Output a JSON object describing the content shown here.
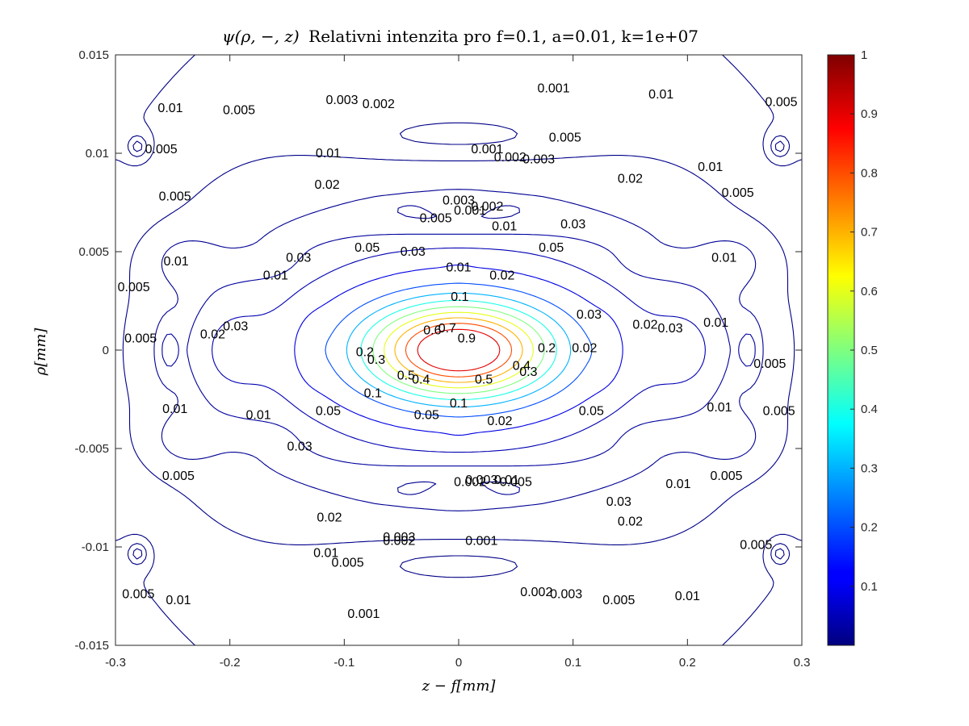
{
  "chart_data": {
    "type": "contour",
    "title": "ψ(ρ, −, z) Relativni intenzita pro f=0.1, a=0.01, k=1e+07",
    "title_parts": {
      "math": "ψ(ρ, −, z)",
      "text": "Relativni intenzita pro f=0.1, a=0.01, k=1e+07"
    },
    "xlabel": "z − f[mm]",
    "ylabel": "ρ[mm]",
    "xlim": [
      -0.3,
      0.3
    ],
    "ylim": [
      -0.015,
      0.015
    ],
    "x_ticks": [
      "-0.3",
      "-0.2",
      "-0.1",
      "0",
      "0.1",
      "0.2",
      "0.3"
    ],
    "y_ticks": [
      "0.015",
      "0.01",
      "0.005",
      "0",
      "-0.005",
      "-0.01",
      "-0.015"
    ],
    "colorbar": {
      "min": 0,
      "max": 1,
      "ticks": [
        "1",
        "0.9",
        "0.8",
        "0.7",
        "0.6",
        "0.5",
        "0.4",
        "0.3",
        "0.2",
        "0.1"
      ],
      "colormap": "jet"
    },
    "contour_levels": [
      0.001,
      0.002,
      0.003,
      0.005,
      0.01,
      0.02,
      0.03,
      0.05,
      0.1,
      0.2,
      0.3,
      0.4,
      0.5,
      0.6,
      0.7,
      0.8,
      0.9
    ],
    "central_peak": {
      "z": 0,
      "rho": 0,
      "value": 1
    },
    "contour_labels": [
      {
        "text": "0.9",
        "z": 0.007,
        "rho": 0.0006
      },
      {
        "text": "0.7",
        "z": -0.01,
        "rho": 0.0011
      },
      {
        "text": "0.6",
        "z": -0.023,
        "rho": 0.001
      },
      {
        "text": "0.5",
        "z": 0.022,
        "rho": -0.0015
      },
      {
        "text": "0.5",
        "z": -0.046,
        "rho": -0.0013
      },
      {
        "text": "0.4",
        "z": 0.055,
        "rho": -0.0008
      },
      {
        "text": "0.4",
        "z": -0.033,
        "rho": -0.0015
      },
      {
        "text": "0.3",
        "z": 0.061,
        "rho": -0.0011
      },
      {
        "text": "0.3",
        "z": -0.072,
        "rho": -0.0005
      },
      {
        "text": "0.2",
        "z": 0.077,
        "rho": 0.0001
      },
      {
        "text": "0.2",
        "z": -0.082,
        "rho": -0.0001
      },
      {
        "text": "0.1",
        "z": 0.001,
        "rho": 0.0027
      },
      {
        "text": "0.1",
        "z": -0.075,
        "rho": -0.0022
      },
      {
        "text": "0.1",
        "z": 0.0,
        "rho": -0.0027
      },
      {
        "text": "0.05",
        "z": -0.08,
        "rho": 0.0052
      },
      {
        "text": "0.05",
        "z": 0.081,
        "rho": 0.0052
      },
      {
        "text": "0.05",
        "z": -0.114,
        "rho": -0.0031
      },
      {
        "text": "0.05",
        "z": 0.116,
        "rho": -0.0031
      },
      {
        "text": "0.05",
        "z": -0.028,
        "rho": -0.0033
      },
      {
        "text": "0.03",
        "z": -0.14,
        "rho": 0.0047
      },
      {
        "text": "0.03",
        "z": 0.1,
        "rho": 0.0064
      },
      {
        "text": "0.03",
        "z": -0.04,
        "rho": 0.005
      },
      {
        "text": "0.03",
        "z": -0.139,
        "rho": -0.0049
      },
      {
        "text": "0.03",
        "z": 0.14,
        "rho": -0.0077
      },
      {
        "text": "0.02",
        "z": -0.115,
        "rho": 0.0084
      },
      {
        "text": "0.02",
        "z": 0.15,
        "rho": 0.0087
      },
      {
        "text": "0.02",
        "z": -0.113,
        "rho": -0.0085
      },
      {
        "text": "0.02",
        "z": 0.15,
        "rho": -0.0087
      },
      {
        "text": "0.02",
        "z": 0.038,
        "rho": 0.0038
      },
      {
        "text": "0.02",
        "z": 0.036,
        "rho": -0.0036
      },
      {
        "text": "0.02",
        "z": -0.215,
        "rho": 0.0008
      },
      {
        "text": "0.02",
        "z": 0.163,
        "rho": 0.0013
      },
      {
        "text": "0.02",
        "z": 0.11,
        "rho": 0.0001
      },
      {
        "text": "0.03",
        "z": -0.195,
        "rho": 0.0012
      },
      {
        "text": "0.03",
        "z": 0.185,
        "rho": 0.0011
      },
      {
        "text": "0.03",
        "z": 0.114,
        "rho": 0.0018
      },
      {
        "text": "0.01",
        "z": -0.247,
        "rho": 0.0045
      },
      {
        "text": "0.01",
        "z": 0.232,
        "rho": 0.0047
      },
      {
        "text": "0.01",
        "z": -0.248,
        "rho": -0.003
      },
      {
        "text": "0.01",
        "z": 0.228,
        "rho": -0.0029
      },
      {
        "text": "0.01",
        "z": -0.16,
        "rho": 0.0038
      },
      {
        "text": "0.01",
        "z": -0.175,
        "rho": -0.0033
      },
      {
        "text": "0.01",
        "z": 0.04,
        "rho": 0.0063
      },
      {
        "text": "0.01",
        "z": 0.0,
        "rho": 0.0042
      },
      {
        "text": "0.01",
        "z": -0.252,
        "rho": 0.0123
      },
      {
        "text": "0.01",
        "z": -0.114,
        "rho": 0.01
      },
      {
        "text": "0.01",
        "z": 0.177,
        "rho": 0.013
      },
      {
        "text": "0.01",
        "z": 0.22,
        "rho": 0.0093
      },
      {
        "text": "0.01",
        "z": -0.116,
        "rho": -0.0103
      },
      {
        "text": "0.01",
        "z": -0.245,
        "rho": -0.0127
      },
      {
        "text": "0.01",
        "z": 0.2,
        "rho": -0.0125
      },
      {
        "text": "0.01",
        "z": 0.192,
        "rho": -0.0068
      },
      {
        "text": "0.01",
        "z": 0.042,
        "rho": -0.0066
      },
      {
        "text": "0.01",
        "z": 0.225,
        "rho": 0.0014
      },
      {
        "text": "0.005",
        "z": -0.192,
        "rho": 0.0122
      },
      {
        "text": "0.005",
        "z": -0.26,
        "rho": 0.0102
      },
      {
        "text": "0.005",
        "z": -0.248,
        "rho": 0.0078
      },
      {
        "text": "0.005",
        "z": -0.284,
        "rho": 0.0032
      },
      {
        "text": "0.005",
        "z": -0.278,
        "rho": 0.0006
      },
      {
        "text": "0.005",
        "z": 0.093,
        "rho": 0.0108
      },
      {
        "text": "0.005",
        "z": 0.282,
        "rho": 0.0126
      },
      {
        "text": "0.005",
        "z": 0.244,
        "rho": 0.008
      },
      {
        "text": "0.005",
        "z": 0.28,
        "rho": -0.0031
      },
      {
        "text": "0.005",
        "z": 0.272,
        "rho": -0.0007
      },
      {
        "text": "0.005",
        "z": -0.245,
        "rho": -0.0064
      },
      {
        "text": "0.005",
        "z": 0.234,
        "rho": -0.0064
      },
      {
        "text": "0.005",
        "z": 0.26,
        "rho": -0.0099
      },
      {
        "text": "0.005",
        "z": -0.28,
        "rho": -0.0124
      },
      {
        "text": "0.005",
        "z": -0.097,
        "rho": -0.0108
      },
      {
        "text": "0.005",
        "z": 0.14,
        "rho": -0.0127
      },
      {
        "text": "0.005",
        "z": -0.02,
        "rho": 0.0067
      },
      {
        "text": "0.005",
        "z": 0.05,
        "rho": -0.0067
      },
      {
        "text": "0.003",
        "z": -0.102,
        "rho": 0.0127
      },
      {
        "text": "0.003",
        "z": 0.07,
        "rho": 0.0097
      },
      {
        "text": "0.003",
        "z": 0.0,
        "rho": 0.0076
      },
      {
        "text": "0.003",
        "z": -0.052,
        "rho": -0.0095
      },
      {
        "text": "0.003",
        "z": 0.094,
        "rho": -0.0124
      },
      {
        "text": "0.003",
        "z": 0.02,
        "rho": -0.0066
      },
      {
        "text": "0.002",
        "z": -0.07,
        "rho": 0.0125
      },
      {
        "text": "0.002",
        "z": 0.045,
        "rho": 0.0098
      },
      {
        "text": "0.002",
        "z": 0.025,
        "rho": 0.0073
      },
      {
        "text": "0.002",
        "z": -0.052,
        "rho": -0.0097
      },
      {
        "text": "0.002",
        "z": 0.068,
        "rho": -0.0123
      },
      {
        "text": "0.002",
        "z": 0.01,
        "rho": -0.0067
      },
      {
        "text": "0.001",
        "z": 0.083,
        "rho": 0.0133
      },
      {
        "text": "0.001",
        "z": 0.025,
        "rho": 0.0102
      },
      {
        "text": "0.001",
        "z": 0.02,
        "rho": -0.0097
      },
      {
        "text": "0.001",
        "z": -0.083,
        "rho": -0.0134
      },
      {
        "text": "0.001",
        "z": 0.01,
        "rho": 0.0071
      }
    ]
  }
}
